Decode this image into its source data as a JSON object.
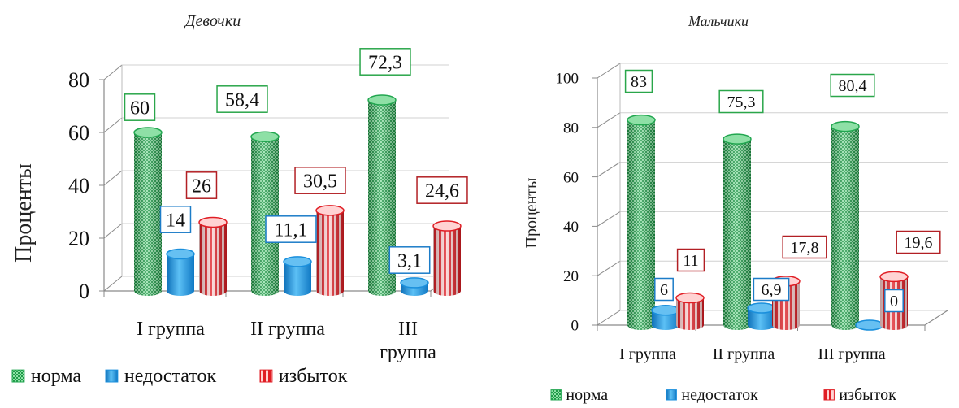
{
  "colors": {
    "norm": "#22a650",
    "norm_light": "#8ee0a6",
    "deficit": "#1a8fdc",
    "deficit_light": "#66c0f2",
    "excess": "#e01d24",
    "excess_light": "#ffd3d3",
    "label_norm_border": "#2aa64a",
    "label_deficit_border": "#1c7cc8",
    "label_excess_border": "#b21f24",
    "axis": "#8a8a8a"
  },
  "chart_data": [
    {
      "type": "bar",
      "title": "Девочки",
      "ylabel": "Проценты",
      "xlabel": "",
      "ylim": [
        0,
        80
      ],
      "yticks": [
        "0",
        "20",
        "40",
        "60",
        "80"
      ],
      "categories": [
        "I группа",
        "II группа",
        "III группа"
      ],
      "series": [
        {
          "name": "норма",
          "values": [
            60,
            58.4,
            72.3
          ],
          "labels": [
            "60",
            "58,4",
            "72,3"
          ]
        },
        {
          "name": "недостаток",
          "values": [
            14,
            11.1,
            3.1
          ],
          "labels": [
            "14",
            "11,1",
            "3,1"
          ]
        },
        {
          "name": "избыток",
          "values": [
            26,
            30.5,
            24.6
          ],
          "labels": [
            "26",
            "30,5",
            "24,6"
          ]
        }
      ],
      "legend": {
        "position": "bottom",
        "items": [
          "норма",
          "недостаток",
          "избыток"
        ]
      }
    },
    {
      "type": "bar",
      "title": "Мальчики",
      "ylabel": "Проценты",
      "xlabel": "",
      "ylim": [
        0,
        100
      ],
      "yticks": [
        "0",
        "20",
        "40",
        "60",
        "80",
        "100"
      ],
      "categories": [
        "I группа",
        "II группа",
        "III группа"
      ],
      "series": [
        {
          "name": "норма",
          "values": [
            83,
            75.3,
            80.4
          ],
          "labels": [
            "83",
            "75,3",
            "80,4"
          ]
        },
        {
          "name": "недостаток",
          "values": [
            6,
            6.9,
            0
          ],
          "labels": [
            "6",
            "6,9",
            "0"
          ]
        },
        {
          "name": "избыток",
          "values": [
            11,
            17.8,
            19.6
          ],
          "labels": [
            "11",
            "17,8",
            "19,6"
          ]
        }
      ],
      "legend": {
        "position": "bottom",
        "items": [
          "норма",
          "недостаток",
          "избыток"
        ]
      }
    }
  ]
}
